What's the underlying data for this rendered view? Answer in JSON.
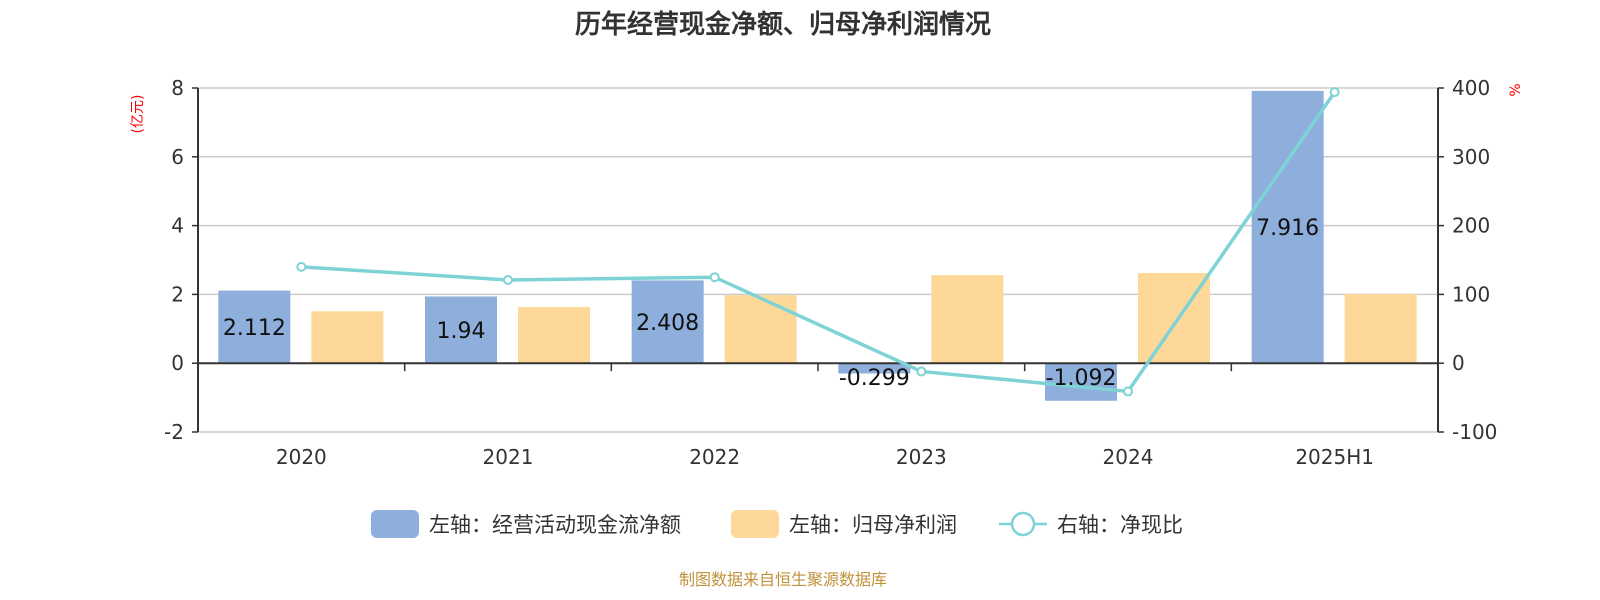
{
  "title": "历年经营现金净额、归母净利润情况",
  "footer": "制图数据来自恒生聚源数据库",
  "axes": {
    "left_unit": "(亿元)",
    "right_unit": "%",
    "left_ticks": [
      "8",
      "6",
      "4",
      "2",
      "0",
      "-2"
    ],
    "right_ticks": [
      "400",
      "300",
      "200",
      "100",
      "0",
      "-100"
    ]
  },
  "legend": [
    {
      "label": "左轴：经营活动现金流净额",
      "color": "#8eaedb",
      "type": "bar"
    },
    {
      "label": "左轴：归母净利润",
      "color": "#fed898",
      "type": "bar"
    },
    {
      "label": "右轴：净现比",
      "color": "#7fd3d6",
      "type": "line"
    }
  ],
  "colors": {
    "operating_cf": "#8eaedb",
    "net_profit": "#fed898",
    "ratio_line": "#7fd3d6",
    "grid": "#cccccc",
    "axis": "#333333",
    "unit_red": "#ff0000",
    "footer": "#c0923a"
  },
  "chart_data": {
    "type": "bar",
    "title": "历年经营现金净额、归母净利润情况",
    "categories": [
      "2020",
      "2021",
      "2022",
      "2023",
      "2024",
      "2025H1"
    ],
    "series": [
      {
        "name": "左轴：经营活动现金流净额",
        "axis": "left",
        "type": "bar",
        "values": [
          2.112,
          1.94,
          2.408,
          -0.299,
          -1.092,
          7.916
        ],
        "labels": [
          "2.112",
          "1.94",
          "2.408",
          "-0.299",
          "-1.092",
          "7.916"
        ]
      },
      {
        "name": "左轴：归母净利润",
        "axis": "left",
        "type": "bar",
        "values": [
          1.51,
          1.63,
          1.98,
          2.56,
          2.62,
          2.01
        ]
      },
      {
        "name": "右轴：净现比",
        "axis": "right",
        "type": "line",
        "values": [
          140,
          121,
          125,
          -12,
          -41,
          394
        ]
      }
    ],
    "ylabel": "(亿元)",
    "ylabel_right": "%",
    "ylim": [
      -2,
      8
    ],
    "ylim_right": [
      -100,
      400
    ],
    "grid": true,
    "legend_position": "bottom"
  }
}
